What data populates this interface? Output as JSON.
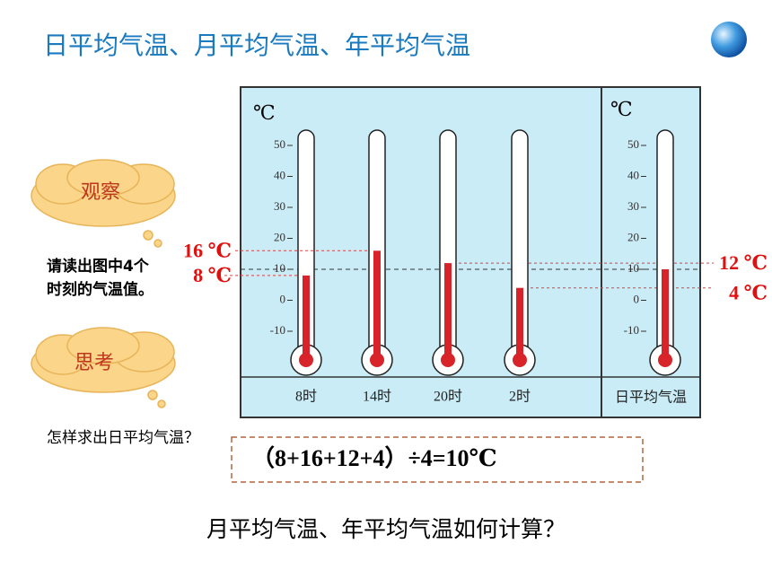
{
  "title": "日平均气温、月平均气温、年平均气温",
  "observe": {
    "label": "观察",
    "text": "请读出图中4个时刻的气温值。"
  },
  "think": {
    "label": "思考",
    "text": "怎样求出日平均气温？"
  },
  "formula": "（8+16+12+4）÷4=10℃",
  "question": "月平均气温、年平均气温如何计算？",
  "thermometers": {
    "unit": "℃",
    "ticks": [
      50,
      40,
      30,
      20,
      10,
      0,
      -10
    ],
    "readings": [
      {
        "time": "8时",
        "value": 8,
        "label": "8 ℃"
      },
      {
        "time": "14时",
        "value": 16,
        "label": "16 ℃"
      },
      {
        "time": "20时",
        "value": 12,
        "label": "12 ℃"
      },
      {
        "time": "2时",
        "value": 4,
        "label": "4 ℃"
      }
    ],
    "average": {
      "name": "日平均气温",
      "value": 10
    }
  }
}
